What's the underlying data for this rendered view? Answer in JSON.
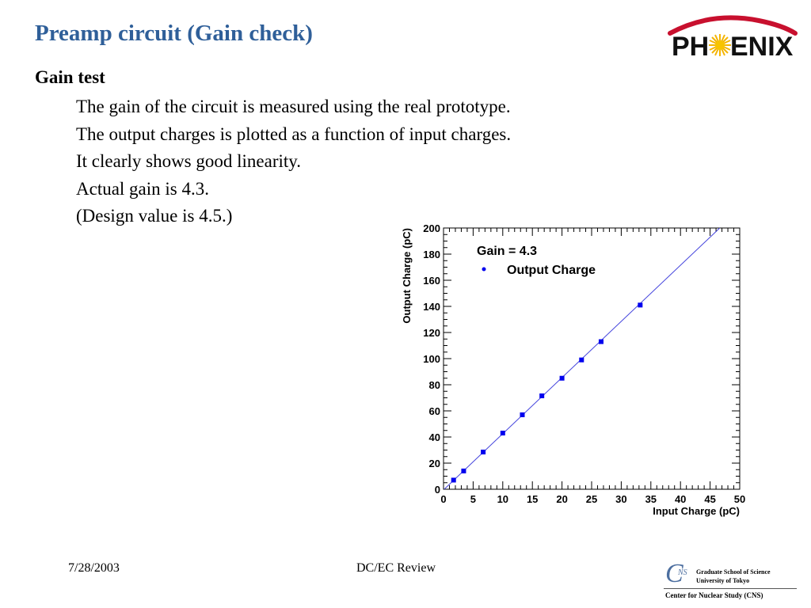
{
  "slide": {
    "title": "Preamp circuit (Gain check)",
    "heading": "Gain test",
    "bullets": [
      "The gain of the circuit is measured using the real prototype.",
      "The output charges is plotted as a function of input charges.",
      "It clearly shows good linearity.",
      "Actual gain is 4.3.",
      "(Design value is 4.5.)"
    ]
  },
  "logo": {
    "left": "PH",
    "right": "ENIX"
  },
  "footer": {
    "date": "7/28/2003",
    "center": "DC/EC Review",
    "cns_mark": "C",
    "cns_sub": "NS",
    "cns_line1": "Graduate School of Science",
    "cns_line2": "University of Tokyo",
    "cns_line3": "Center for Nuclear Study (CNS)"
  },
  "colors": {
    "title": "#2f5f99",
    "markers": "#0000ee",
    "fit_line": "#4444dd"
  },
  "chart_data": {
    "type": "scatter",
    "xlabel": "Input Charge (pC)",
    "ylabel": "Output Charge (pC)",
    "xlim": [
      0,
      50
    ],
    "ylim": [
      0,
      200
    ],
    "xticks": [
      0,
      5,
      10,
      15,
      20,
      25,
      30,
      35,
      40,
      45,
      50
    ],
    "yticks": [
      0,
      20,
      40,
      60,
      80,
      100,
      120,
      140,
      160,
      180,
      200
    ],
    "annotation": "Gain = 4.3",
    "legend": "top-left",
    "grid": false,
    "series": [
      {
        "name": "Output Charge",
        "x": [
          1.7,
          3.4,
          6.7,
          10.0,
          13.3,
          16.6,
          20.0,
          23.3,
          26.6,
          33.2
        ],
        "y": [
          7,
          14,
          28.5,
          43,
          57,
          71.5,
          85,
          99,
          113,
          141
        ]
      }
    ],
    "fit": {
      "slope": 4.3,
      "intercept": -0.5
    }
  }
}
